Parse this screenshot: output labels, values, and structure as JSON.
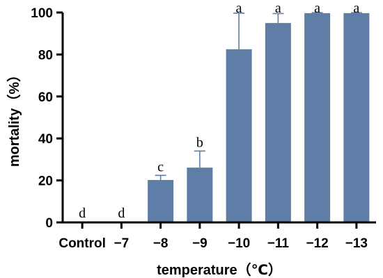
{
  "chart_data": {
    "type": "bar",
    "categories": [
      "Control",
      "−7",
      "−8",
      "−9",
      "−10",
      "−11",
      "−12",
      "−13"
    ],
    "values": [
      0,
      0,
      20.2,
      26.1,
      82.5,
      95,
      99.7,
      99.7
    ],
    "error_upper": [
      null,
      null,
      22.4,
      34.0,
      99.7,
      99.5,
      99.9,
      99.9
    ],
    "significance": [
      "d",
      "d",
      "c",
      "b",
      "a",
      "a",
      "a",
      "a"
    ],
    "xlabel": "temperature（℃）",
    "ylabel": "mortality（%）",
    "yticks": [
      "0",
      "20",
      "40",
      "60",
      "80",
      "100"
    ],
    "ylim": [
      0,
      100
    ],
    "grid": false,
    "bar_color": "#5f7ea7",
    "axis_color": "#000000"
  }
}
